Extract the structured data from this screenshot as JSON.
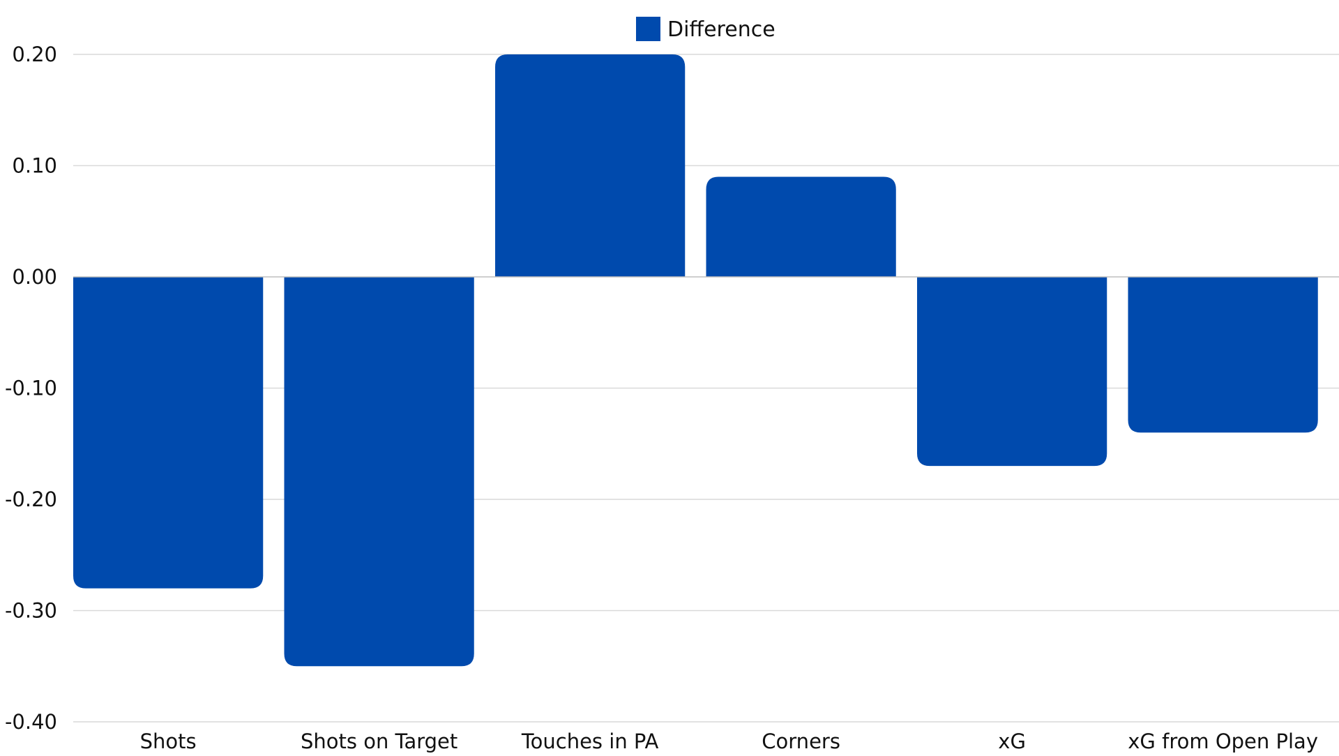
{
  "chart_data": {
    "type": "bar",
    "categories": [
      "Shots",
      "Shots on Target",
      "Touches in PA",
      "Corners",
      "xG",
      "xG from Open Play"
    ],
    "series": [
      {
        "name": "Difference",
        "color": "#004AAD",
        "values": [
          -0.28,
          -0.35,
          0.2,
          0.09,
          -0.17,
          -0.14
        ]
      }
    ],
    "ylim": [
      -0.4,
      0.2
    ],
    "yticks": [
      0.2,
      0.1,
      0.0,
      -0.1,
      -0.2,
      -0.3,
      -0.4
    ],
    "ytick_labels": [
      "0.20",
      "0.10",
      "0.00",
      "-0.10",
      "-0.20",
      "-0.30",
      "-0.40"
    ],
    "grid": true,
    "legend_position": "top-center",
    "title": "",
    "xlabel": "",
    "ylabel": ""
  }
}
